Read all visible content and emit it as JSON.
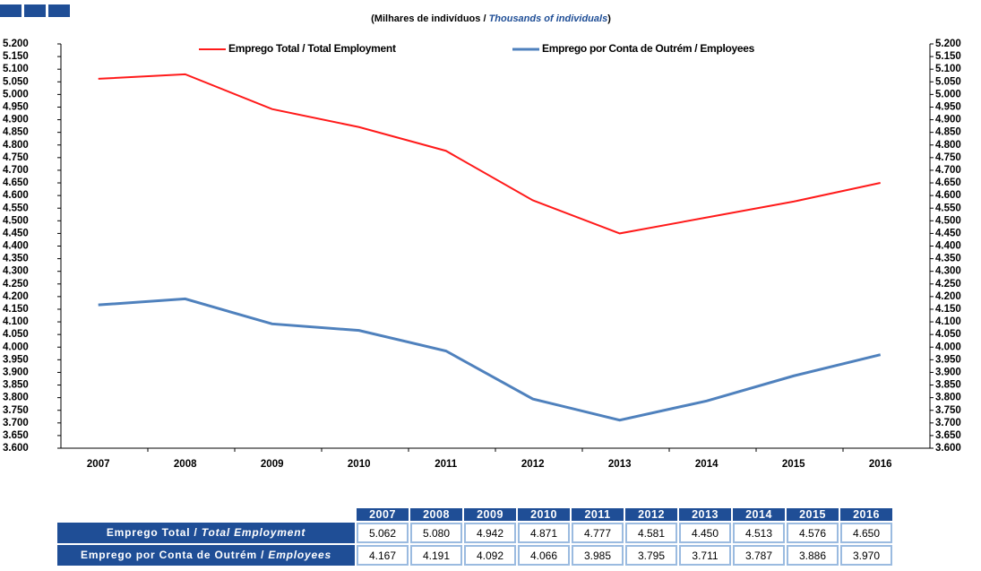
{
  "chart_data": {
    "type": "line",
    "subtitle": [
      "(Milhares  de  indivíduos  / ",
      "Thousands of individuals",
      ")"
    ],
    "categories": [
      "2007",
      "2008",
      "2009",
      "2010",
      "2011",
      "2012",
      "2013",
      "2014",
      "2015",
      "2016"
    ],
    "series": [
      {
        "name": "Emprego Total / Total Employment",
        "color": "#ff1a1a",
        "values": [
          5062,
          5080,
          4942,
          4871,
          4777,
          4581,
          4450,
          4513,
          4576,
          4650
        ],
        "value_labels": [
          "5.062",
          "5.080",
          "4.942",
          "4.871",
          "4.777",
          "4.581",
          "4.450",
          "4.513",
          "4.576",
          "4.650"
        ]
      },
      {
        "name": "Emprego por Conta de Outrém / Employees",
        "color": "#4f81bd",
        "values": [
          4167,
          4191,
          4092,
          4066,
          3985,
          3795,
          3711,
          3787,
          3886,
          3970
        ],
        "value_labels": [
          "4.167",
          "4.191",
          "4.092",
          "4.066",
          "3.985",
          "3.795",
          "3.711",
          "3.787",
          "3.886",
          "3.970"
        ]
      }
    ],
    "ylim": [
      3600,
      5200
    ],
    "yticks": [
      {
        "value": 3600,
        "label": "3.600"
      },
      {
        "value": 3650,
        "label": "3.650"
      },
      {
        "value": 3700,
        "label": "3.700"
      },
      {
        "value": 3750,
        "label": "3.750"
      },
      {
        "value": 3800,
        "label": "3.800"
      },
      {
        "value": 3850,
        "label": "3.850"
      },
      {
        "value": 3900,
        "label": "3.900"
      },
      {
        "value": 3950,
        "label": "3.950"
      },
      {
        "value": 4000,
        "label": "4.000"
      },
      {
        "value": 4050,
        "label": "4.050"
      },
      {
        "value": 4100,
        "label": "4.100"
      },
      {
        "value": 4150,
        "label": "4.150"
      },
      {
        "value": 4200,
        "label": "4.200"
      },
      {
        "value": 4250,
        "label": "4.250"
      },
      {
        "value": 4300,
        "label": "4.300"
      },
      {
        "value": 4350,
        "label": "4.350"
      },
      {
        "value": 4400,
        "label": "4.400"
      },
      {
        "value": 4450,
        "label": "4.450"
      },
      {
        "value": 4500,
        "label": "4.500"
      },
      {
        "value": 4550,
        "label": "4.550"
      },
      {
        "value": 4600,
        "label": "4.600"
      },
      {
        "value": 4650,
        "label": "4.650"
      },
      {
        "value": 4700,
        "label": "4.700"
      },
      {
        "value": 4750,
        "label": "4.750"
      },
      {
        "value": 4800,
        "label": "4.800"
      },
      {
        "value": 4850,
        "label": "4.850"
      },
      {
        "value": 4900,
        "label": "4.900"
      },
      {
        "value": 4950,
        "label": "4.950"
      },
      {
        "value": 5000,
        "label": "5.000"
      },
      {
        "value": 5050,
        "label": "5.050"
      },
      {
        "value": 5100,
        "label": "5.100"
      },
      {
        "value": 5150,
        "label": "5.150"
      },
      {
        "value": 5200,
        "label": "5.200"
      }
    ],
    "legend": "top",
    "table": {
      "rows": [
        {
          "label": [
            "Emprego Total / ",
            "Total Employment"
          ]
        },
        {
          "label": [
            "Emprego por Conta de Outrém / ",
            "Employees"
          ]
        }
      ]
    }
  }
}
